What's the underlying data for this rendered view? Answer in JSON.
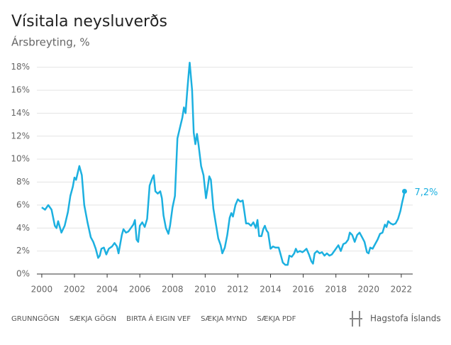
{
  "chart_data": {
    "type": "line",
    "title": "Vísitala neysluverðs",
    "subtitle": "Ársbreyting, %",
    "x": [
      2000.0,
      2000.2,
      2000.4,
      2000.6,
      2000.8,
      2000.9,
      2001.0,
      2001.2,
      2001.4,
      2001.6,
      2001.75,
      2001.9,
      2002.0,
      2002.1,
      2002.2,
      2002.3,
      2002.45,
      2002.6,
      2002.8,
      2003.0,
      2003.15,
      2003.3,
      2003.45,
      2003.55,
      2003.65,
      2003.8,
      2003.95,
      2004.1,
      2004.3,
      2004.45,
      2004.6,
      2004.7,
      2004.8,
      2004.9,
      2005.0,
      2005.15,
      2005.3,
      2005.45,
      2005.6,
      2005.7,
      2005.8,
      2005.9,
      2006.0,
      2006.15,
      2006.3,
      2006.45,
      2006.6,
      2006.75,
      2006.85,
      2006.95,
      2007.1,
      2007.25,
      2007.35,
      2007.45,
      2007.6,
      2007.75,
      2007.85,
      2008.0,
      2008.15,
      2008.3,
      2008.45,
      2008.6,
      2008.7,
      2008.8,
      2008.9,
      2009.0,
      2009.05,
      2009.2,
      2009.3,
      2009.4,
      2009.5,
      2009.6,
      2009.75,
      2009.9,
      2010.05,
      2010.15,
      2010.25,
      2010.35,
      2010.5,
      2010.65,
      2010.8,
      2010.95,
      2011.05,
      2011.2,
      2011.35,
      2011.5,
      2011.6,
      2011.7,
      2011.85,
      2012.0,
      2012.15,
      2012.3,
      2012.4,
      2012.5,
      2012.65,
      2012.8,
      2012.95,
      2013.1,
      2013.2,
      2013.3,
      2013.45,
      2013.55,
      2013.65,
      2013.75,
      2013.85,
      2014.0,
      2014.15,
      2014.3,
      2014.5,
      2014.6,
      2014.75,
      2014.9,
      2015.05,
      2015.15,
      2015.3,
      2015.45,
      2015.55,
      2015.65,
      2015.8,
      2015.95,
      2016.05,
      2016.2,
      2016.35,
      2016.5,
      2016.6,
      2016.7,
      2016.85,
      2017.0,
      2017.15,
      2017.3,
      2017.45,
      2017.6,
      2017.75,
      2017.9,
      2018.05,
      2018.15,
      2018.3,
      2018.45,
      2018.6,
      2018.75,
      2018.85,
      2019.0,
      2019.15,
      2019.3,
      2019.45,
      2019.6,
      2019.75,
      2019.9,
      2020.0,
      2020.1,
      2020.25,
      2020.4,
      2020.55,
      2020.7,
      2020.85,
      2021.0,
      2021.1,
      2021.2,
      2021.35,
      2021.5,
      2021.65,
      2021.8,
      2021.95,
      2022.05,
      2022.15,
      2022.2
    ],
    "series": [
      {
        "color": "#1cb0e0",
        "values": [
          5.8,
          5.6,
          6.0,
          5.6,
          4.2,
          4.0,
          4.6,
          3.6,
          4.2,
          5.4,
          6.8,
          7.6,
          8.4,
          8.2,
          8.8,
          9.4,
          8.6,
          6.0,
          4.5,
          3.2,
          2.8,
          2.2,
          1.4,
          1.6,
          2.2,
          2.3,
          1.7,
          2.2,
          2.4,
          2.7,
          2.4,
          1.8,
          2.6,
          3.4,
          3.9,
          3.6,
          3.7,
          4.0,
          4.3,
          4.7,
          3.0,
          2.8,
          4.2,
          4.5,
          4.1,
          4.8,
          7.7,
          8.3,
          8.6,
          7.2,
          7.0,
          7.2,
          6.6,
          5.1,
          4.0,
          3.5,
          4.2,
          5.8,
          6.8,
          11.8,
          12.7,
          13.6,
          14.5,
          14.0,
          15.9,
          17.6,
          18.4,
          16.0,
          12.3,
          11.3,
          12.2,
          11.2,
          9.4,
          8.6,
          6.6,
          7.5,
          8.5,
          8.2,
          5.7,
          4.4,
          3.1,
          2.5,
          1.8,
          2.3,
          3.4,
          4.9,
          5.3,
          5.0,
          6.0,
          6.5,
          6.3,
          6.4,
          5.4,
          4.4,
          4.4,
          4.2,
          4.5,
          4.0,
          4.7,
          3.3,
          3.3,
          3.9,
          4.2,
          3.8,
          3.6,
          2.2,
          2.4,
          2.3,
          2.3,
          1.8,
          1.0,
          0.8,
          0.8,
          1.6,
          1.5,
          1.8,
          2.2,
          1.9,
          2.0,
          1.9,
          2.0,
          2.2,
          1.7,
          1.1,
          0.9,
          1.8,
          2.0,
          1.8,
          1.9,
          1.6,
          1.8,
          1.6,
          1.7,
          2.0,
          2.3,
          2.5,
          2.0,
          2.6,
          2.7,
          3.0,
          3.6,
          3.4,
          2.8,
          3.4,
          3.6,
          3.2,
          2.8,
          1.9,
          1.8,
          2.3,
          2.2,
          2.6,
          3.0,
          3.5,
          3.6,
          4.3,
          4.1,
          4.6,
          4.4,
          4.3,
          4.4,
          4.8,
          5.5,
          6.2,
          6.8,
          7.2
        ]
      }
    ],
    "end_label": {
      "label": "7,2%",
      "value": 7.2,
      "x": 2022.2
    },
    "xlim": [
      1999.7,
      2022.7
    ],
    "xticks": [
      2000,
      2002,
      2004,
      2006,
      2008,
      2010,
      2012,
      2014,
      2016,
      2018,
      2020,
      2022
    ],
    "ylim": [
      0,
      18.6
    ],
    "yticks": [
      {
        "value": 0,
        "label": "0%"
      },
      {
        "value": 2,
        "label": "2%"
      },
      {
        "value": 4,
        "label": "4%"
      },
      {
        "value": 6,
        "label": "6%"
      },
      {
        "value": 8,
        "label": "8%"
      },
      {
        "value": 10,
        "label": "10%"
      },
      {
        "value": 12,
        "label": "12%"
      },
      {
        "value": 14,
        "label": "14%"
      },
      {
        "value": 16,
        "label": "16%"
      },
      {
        "value": 18,
        "label": "18%"
      }
    ],
    "grid": true
  },
  "footer": {
    "links": [
      "GRUNNGÖGN",
      "SÆKJA GÖGN",
      "BIRTA Á EIGIN VEF",
      "SÆKJA MYND",
      "SÆKJA PDF"
    ],
    "logo": "Hagstofa Íslands"
  }
}
